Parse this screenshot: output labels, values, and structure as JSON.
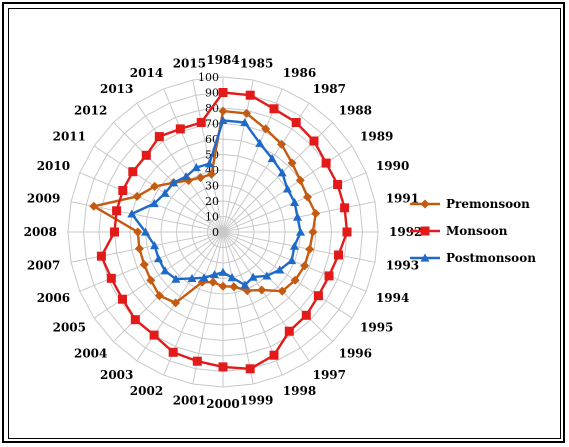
{
  "chart_data": {
    "type": "radar",
    "categories": [
      "1984",
      "1985",
      "1986",
      "1987",
      "1988",
      "1989",
      "1990",
      "1991",
      "1992",
      "1993",
      "1994",
      "1995",
      "1996",
      "1997",
      "1998",
      "1999",
      "2000",
      "2001",
      "2002",
      "2003",
      "2004",
      "2005",
      "2006",
      "2007",
      "2008",
      "2009",
      "2010",
      "2011",
      "2012",
      "2013",
      "2014",
      "2015"
    ],
    "radial_ticks": [
      0,
      10,
      20,
      30,
      40,
      50,
      60,
      70,
      80,
      90,
      100
    ],
    "rlim": [
      0,
      100
    ],
    "grid": true,
    "legend_position": "right",
    "series": [
      {
        "name": "Premonsoon",
        "color": "#C55A11",
        "marker": "diamond",
        "values": [
          78,
          78,
          72,
          68,
          63,
          60,
          59,
          61,
          58,
          57,
          57,
          56,
          54,
          45,
          41,
          36,
          35,
          33,
          35,
          55,
          58,
          56,
          55,
          55,
          55,
          85,
          60,
          53,
          45,
          40,
          38,
          38
        ]
      },
      {
        "name": "Monsoon",
        "color": "#E31A1A",
        "marker": "square",
        "values": [
          90,
          90,
          86,
          85,
          83,
          80,
          80,
          80,
          80,
          76,
          74,
          74,
          76,
          77,
          86,
          90,
          87,
          85,
          84,
          80,
          80,
          78,
          78,
          80,
          70,
          70,
          70,
          70,
          70,
          74,
          72,
          72
        ]
      },
      {
        "name": "Postmonsoon",
        "color": "#1F6AC8",
        "marker": "triangle",
        "values": [
          72,
          72,
          62,
          57,
          54,
          50,
          50,
          49,
          50,
          47,
          48,
          44,
          40,
          35,
          37,
          30,
          26,
          28,
          32,
          36,
          43,
          45,
          45,
          45,
          50,
          60,
          48,
          45,
          45,
          43,
          45,
          45
        ]
      }
    ]
  }
}
